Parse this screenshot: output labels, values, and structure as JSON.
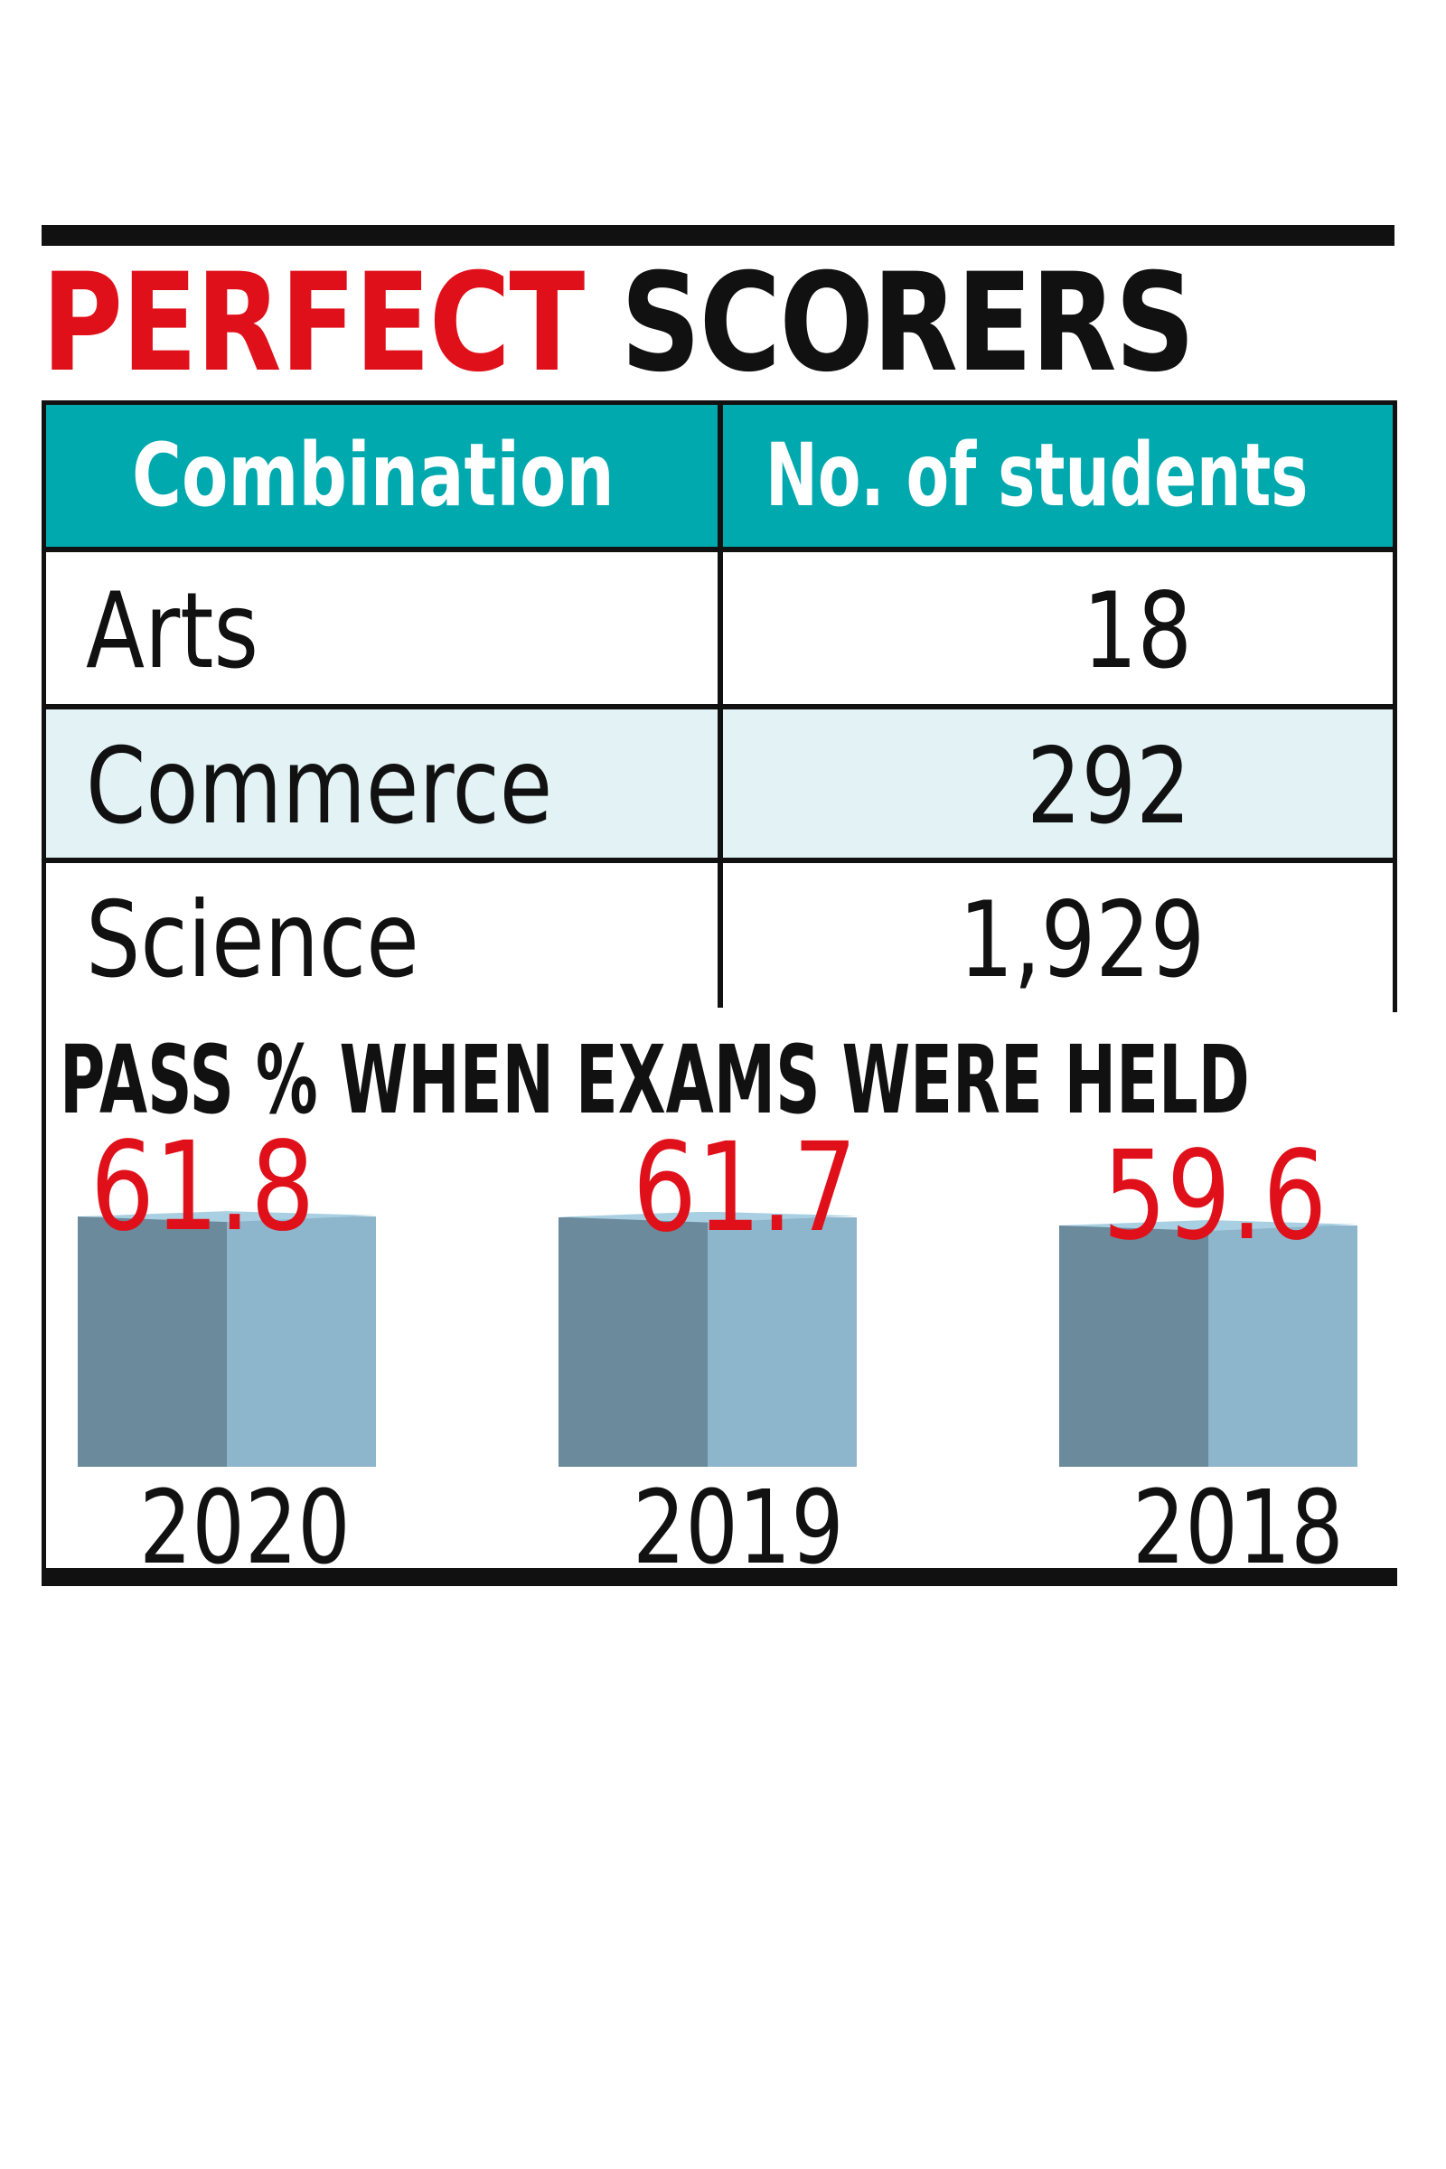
{
  "title": {
    "part1": "PERFECT",
    "part2": "SCORERS"
  },
  "table": {
    "headers": [
      "Combination",
      "No. of students"
    ],
    "rows": [
      {
        "combination": "Arts",
        "students": "18"
      },
      {
        "combination": "Commerce",
        "students": "292"
      },
      {
        "combination": "Science",
        "students": "1,929"
      }
    ]
  },
  "colors": {
    "accent_red": "#e0101a",
    "header_teal": "#00a9ae",
    "row_alt": "#e3f3f5",
    "bar_dark": "#6b8a9b",
    "bar_light": "#8db5cc",
    "bar_top": "#a9d0e2"
  },
  "chart_data": {
    "type": "bar",
    "title": "PASS % WHEN EXAMS WERE HELD",
    "categories": [
      "2020",
      "2019",
      "2018"
    ],
    "values": [
      61.8,
      61.7,
      59.6
    ],
    "value_labels": [
      "61.8",
      "61.7",
      "59.6"
    ],
    "xlabel": "",
    "ylabel": "",
    "ylim": [
      0,
      61.8
    ]
  }
}
